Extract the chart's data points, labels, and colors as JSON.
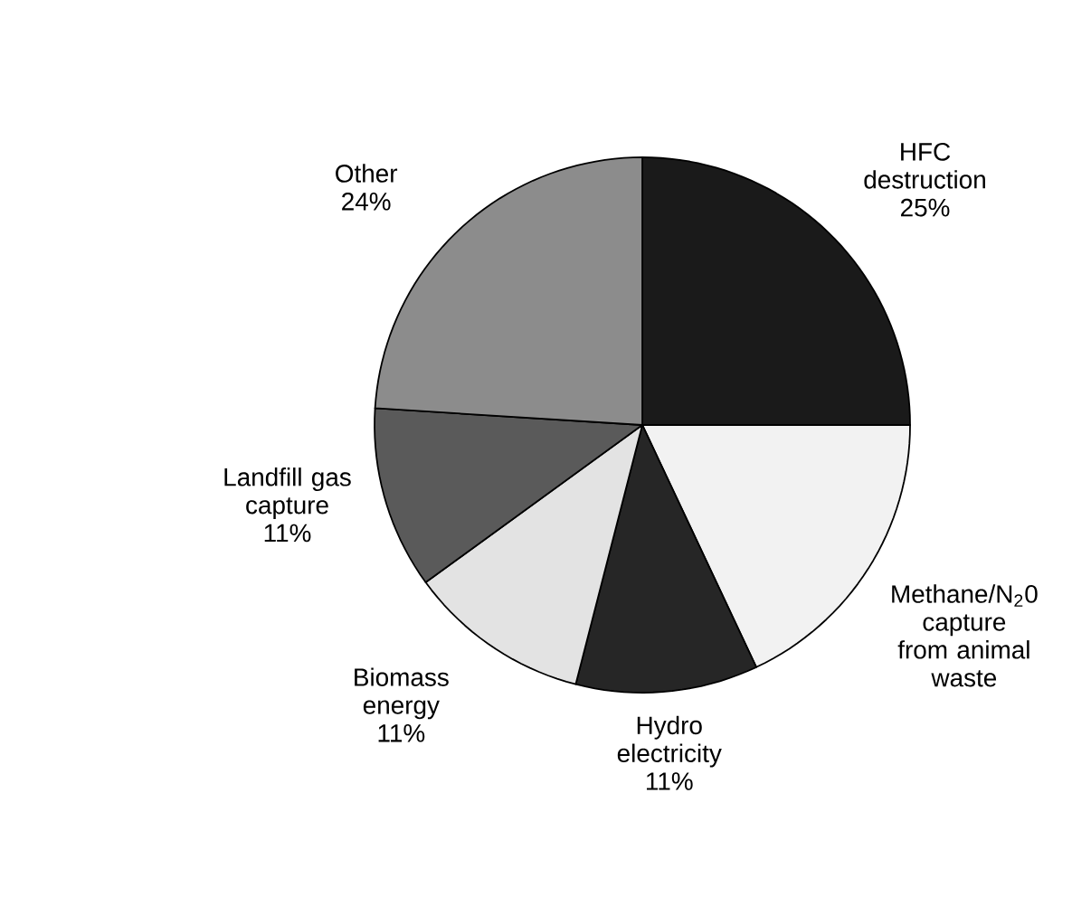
{
  "chart_data": {
    "type": "pie",
    "categories": [
      "HFC destruction",
      "Methane/N$_{2}$0 capture from animal waste",
      "Hydro electricity",
      "Biomass energy",
      "Landfill gas capture",
      "Other"
    ],
    "values": [
      25,
      18,
      11,
      11,
      11,
      24
    ],
    "value_labels": [
      "25%",
      null,
      "11%",
      "11%",
      "11%",
      "24%"
    ],
    "colors": [
      "#1a1a1a",
      "#f2f2f2",
      "#262626",
      "#e3e3e3",
      "#5a5a5a",
      "#8c8c8c"
    ]
  }
}
